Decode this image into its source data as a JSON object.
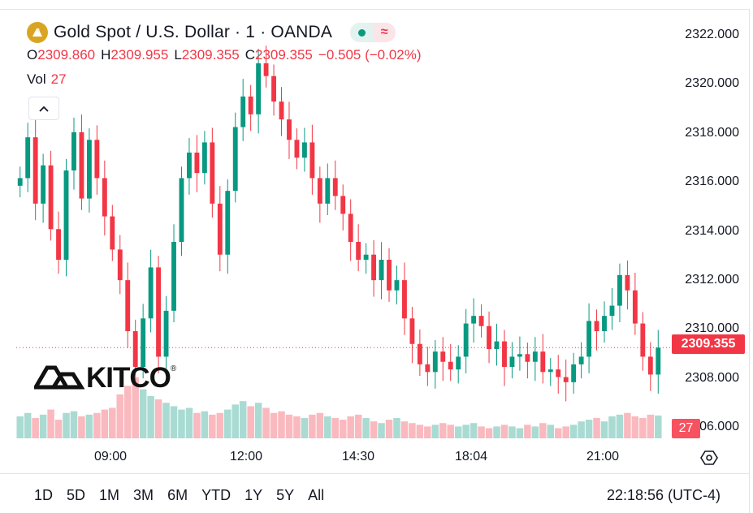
{
  "header": {
    "symbol_title": "Gold Spot / U.S. Dollar · 1 · OANDA",
    "status_pill_label": "≈"
  },
  "ohlc": {
    "o_key": "O",
    "o_val": "2309.860",
    "h_key": "H",
    "h_val": "2309.955",
    "l_key": "L",
    "l_val": "2309.355",
    "c_key": "C",
    "c_val": "2309.355",
    "change": "−0.505 (−0.02%)"
  },
  "volume_legend": {
    "label": "Vol",
    "value": "27"
  },
  "watermark": {
    "text": "KITCO",
    "reg": "®"
  },
  "price_axis": {
    "labels": [
      "2322.000",
      "2320.000",
      "2318.000",
      "2316.000",
      "2314.000",
      "2312.000",
      "2310.000",
      "2308.000",
      "2306.000"
    ],
    "last_price": "2309.355",
    "volume_tag": "27"
  },
  "time_axis": {
    "labels": [
      "09:00",
      "12:00",
      "14:30",
      "18:04",
      "21:00"
    ]
  },
  "range_bar": {
    "buttons": [
      "1D",
      "5D",
      "1M",
      "3M",
      "6M",
      "YTD",
      "1Y",
      "5Y",
      "All"
    ]
  },
  "clock": "22:18:56 (UTC-4)",
  "colors": {
    "up": "#089981",
    "down": "#f23645",
    "gold": "#d9a521"
  },
  "chart_data": {
    "type": "candlestick",
    "title": "Gold Spot / U.S. Dollar · 1 · OANDA",
    "ylim": [
      2305.8,
      2322.6
    ],
    "last_price": 2309.355,
    "x_tick_labels": [
      "09:00",
      "12:00",
      "14:30",
      "18:04",
      "21:00"
    ],
    "x_tick_index": [
      13,
      31,
      47,
      62,
      79
    ],
    "volume_series_name": "Vol",
    "close": [
      2316.0,
      2317.6,
      2315.0,
      2316.5,
      2314.0,
      2312.8,
      2316.3,
      2317.8,
      2315.2,
      2317.5,
      2316.0,
      2314.5,
      2313.2,
      2312.0,
      2310.0,
      2308.6,
      2310.5,
      2312.5,
      2309.0,
      2310.8,
      2313.5,
      2316.0,
      2317.0,
      2316.2,
      2317.4,
      2315.0,
      2313.0,
      2315.5,
      2318.0,
      2319.2,
      2318.5,
      2320.5,
      2320.0,
      2319.0,
      2318.3,
      2317.5,
      2316.8,
      2317.4,
      2316.0,
      2315.0,
      2316.0,
      2315.3,
      2314.6,
      2313.5,
      2312.8,
      2313.0,
      2312.0,
      2312.8,
      2311.6,
      2312.0,
      2310.5,
      2309.5,
      2308.7,
      2308.4,
      2309.2,
      2308.8,
      2308.5,
      2309.0,
      2310.3,
      2310.6,
      2310.2,
      2309.3,
      2309.6,
      2308.6,
      2309.0,
      2309.1,
      2308.8,
      2309.2,
      2308.4,
      2308.5,
      2308.2,
      2308.0,
      2308.7,
      2309.0,
      2310.4,
      2310.0,
      2310.6,
      2311.0,
      2312.2,
      2311.6,
      2310.3,
      2309.0,
      2308.3,
      2309.355
    ],
    "volume": [
      26,
      30,
      24,
      28,
      34,
      22,
      30,
      32,
      26,
      28,
      30,
      34,
      36,
      52,
      62,
      72,
      58,
      50,
      46,
      42,
      38,
      34,
      36,
      30,
      32,
      28,
      30,
      34,
      40,
      44,
      38,
      42,
      36,
      30,
      32,
      28,
      26,
      24,
      28,
      30,
      26,
      24,
      22,
      26,
      28,
      24,
      20,
      18,
      22,
      24,
      20,
      18,
      16,
      14,
      16,
      18,
      16,
      14,
      16,
      18,
      14,
      12,
      14,
      16,
      14,
      12,
      16,
      14,
      18,
      16,
      12,
      14,
      16,
      20,
      22,
      24,
      20,
      26,
      28,
      30,
      26,
      24,
      28,
      27
    ]
  }
}
